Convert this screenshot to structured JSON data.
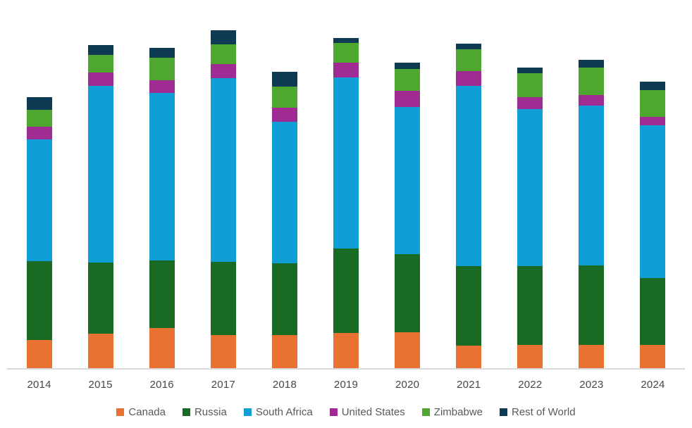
{
  "chart_data": {
    "type": "bar",
    "stacked": true,
    "title": "",
    "categories": [
      "2014",
      "2015",
      "2016",
      "2017",
      "2018",
      "2019",
      "2020",
      "2021",
      "2022",
      "2023",
      "2024"
    ],
    "series": [
      {
        "name": "Canada",
        "color": "#E97132",
        "values": [
          40,
          49,
          57,
          47,
          47,
          50,
          51,
          32,
          33,
          33,
          33
        ]
      },
      {
        "name": "Russia",
        "color": "#196B24",
        "values": [
          112,
          101,
          96,
          104,
          102,
          120,
          111,
          113,
          112,
          113,
          95
        ]
      },
      {
        "name": "South Africa",
        "color": "#0F9ED5",
        "values": [
          173,
          251,
          238,
          261,
          201,
          243,
          209,
          256,
          223,
          227,
          217
        ]
      },
      {
        "name": "United States",
        "color": "#A02B93",
        "values": [
          18,
          19,
          18,
          20,
          20,
          21,
          23,
          21,
          17,
          15,
          12
        ]
      },
      {
        "name": "Zimbabwe",
        "color": "#4EA72E",
        "values": [
          24,
          25,
          32,
          28,
          30,
          28,
          31,
          31,
          34,
          39,
          38
        ]
      },
      {
        "name": "Rest of World",
        "color": "#0E3A53",
        "values": [
          18,
          14,
          14,
          20,
          21,
          7,
          9,
          8,
          8,
          11,
          12
        ]
      }
    ],
    "value_unit": "relative height units (no y-axis labels or gridlines shown in chart; 1 unit = 1 screen px)",
    "totals_by_year": [
      385,
      459,
      455,
      480,
      421,
      469,
      434,
      461,
      427,
      438,
      407
    ],
    "xlabel": "",
    "ylabel": "",
    "ylim": [
      0,
      523
    ],
    "grid": false,
    "y_axis_visible": false,
    "legend_position": "bottom"
  },
  "x_axis": {
    "labels": [
      "2014",
      "2015",
      "2016",
      "2017",
      "2018",
      "2019",
      "2020",
      "2021",
      "2022",
      "2023",
      "2024"
    ]
  },
  "legend": {
    "items": [
      "Canada",
      "Russia",
      "South Africa",
      "United States",
      "Zimbabwe",
      "Rest of World"
    ]
  },
  "colors": {
    "background": "#FFFFFF",
    "axis_line": "#D9D9D9",
    "tick_label_text": "#474747",
    "legend_text": "#595959"
  }
}
